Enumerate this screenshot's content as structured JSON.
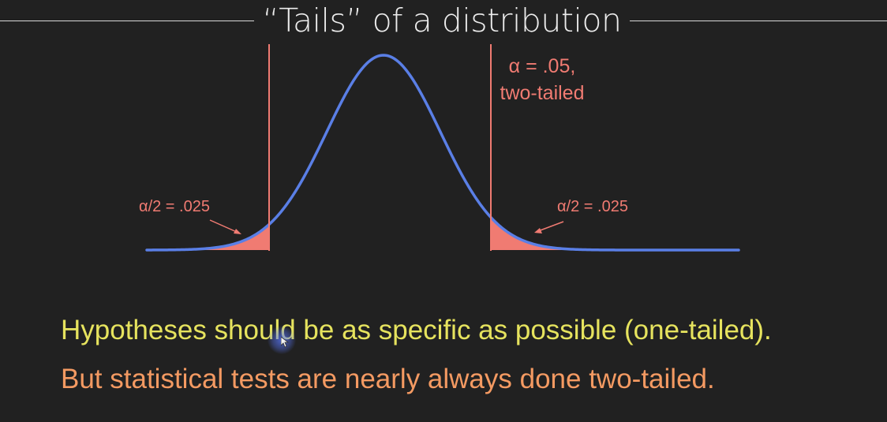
{
  "slide": {
    "title": "“Tails” of a distribution"
  },
  "diagram": {
    "alpha_line1": "α = .05,",
    "alpha_line2": "two-tailed",
    "left_tail_label": "α/2 = .025",
    "right_tail_label": "α/2 = .025",
    "colors": {
      "curve": "#5a7fe6",
      "critical_line": "#f07b72",
      "tail_fill": "#f07b72"
    }
  },
  "body": {
    "line1": "Hypotheses should be as specific as possible (one-tailed).",
    "line2": "But statistical tests are nearly always done two-tailed."
  }
}
